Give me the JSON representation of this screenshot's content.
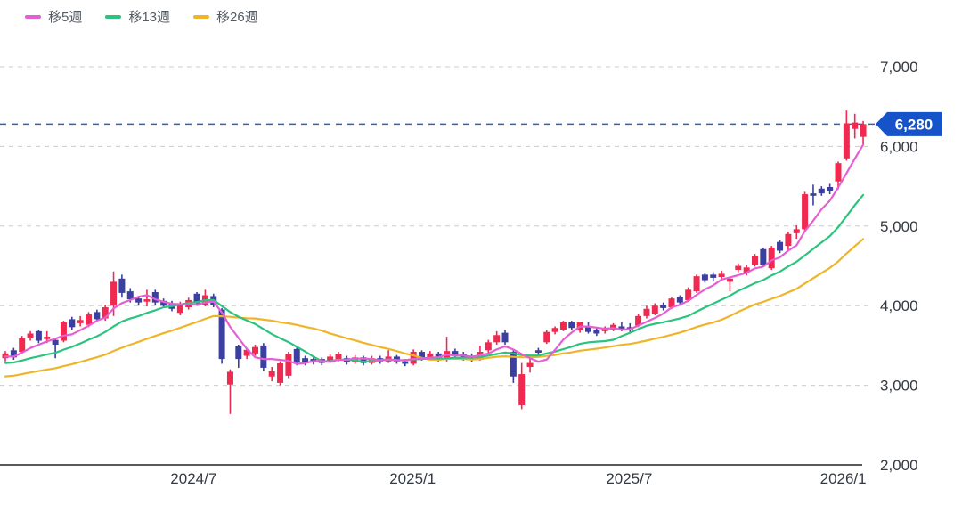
{
  "legend": {
    "items": [
      {
        "label": "移5週",
        "color": "#e55fd2"
      },
      {
        "label": "移13週",
        "color": "#2bc47e"
      },
      {
        "label": "移26週",
        "color": "#f0b429"
      }
    ]
  },
  "price_marker": {
    "label": "6,280",
    "value": 6280,
    "tag_color": "#1753c8",
    "line_color": "#2f5fc9",
    "text_color": "#ffffff"
  },
  "chart_data": {
    "type": "candlestick",
    "title": "",
    "interval": "weekly",
    "ylim": [
      2000,
      7000
    ],
    "grid": "dashed-horizontal",
    "legend_position": "top-left",
    "colors": {
      "up_candle": "#ef2950",
      "down_candle": "#3b3f9f",
      "gridline": "#cccccc",
      "axis_line": "#222222",
      "tick_text": "#343a42",
      "ma5": "#e55fd2",
      "ma13": "#2bc47e",
      "ma26": "#f0b429"
    },
    "y_ticks": [
      {
        "label": "7,000",
        "value": 7000
      },
      {
        "label": "6,000",
        "value": 6000
      },
      {
        "label": "5,000",
        "value": 5000
      },
      {
        "label": "4,000",
        "value": 4000
      },
      {
        "label": "3,000",
        "value": 3000
      },
      {
        "label": "2,000",
        "value": 2000
      }
    ],
    "x_ticks": [
      {
        "label": "2024/7",
        "week": 22.6
      },
      {
        "label": "2025/1",
        "week": 48.9
      },
      {
        "label": "2025/7",
        "week": 74.9
      },
      {
        "label": "2026/1",
        "week": 100.6
      }
    ],
    "moving_averages": {
      "windows": [
        5,
        13,
        26
      ],
      "left_edge_values": {
        "ma5": 3350,
        "ma13": 3270,
        "ma26": 3100
      }
    },
    "ohlc_note": "weekly candles [open,high,low,close], read from chart",
    "ohlc": [
      [
        3340,
        3430,
        3300,
        3400
      ],
      [
        3440,
        3470,
        3320,
        3350
      ],
      [
        3420,
        3620,
        3390,
        3590
      ],
      [
        3590,
        3680,
        3560,
        3650
      ],
      [
        3680,
        3700,
        3530,
        3560
      ],
      [
        3580,
        3680,
        3530,
        3610
      ],
      [
        3570,
        3600,
        3340,
        3510
      ],
      [
        3560,
        3810,
        3540,
        3790
      ],
      [
        3830,
        3860,
        3700,
        3730
      ],
      [
        3780,
        3870,
        3740,
        3820
      ],
      [
        3760,
        3920,
        3730,
        3890
      ],
      [
        3920,
        3950,
        3810,
        3830
      ],
      [
        3840,
        4010,
        3810,
        3980
      ],
      [
        4000,
        4430,
        3870,
        4300
      ],
      [
        4340,
        4390,
        4100,
        4160
      ],
      [
        4180,
        4220,
        4040,
        4080
      ],
      [
        4090,
        4120,
        4000,
        4040
      ],
      [
        4050,
        4200,
        3990,
        4080
      ],
      [
        4170,
        4200,
        4010,
        4040
      ],
      [
        4060,
        4090,
        3970,
        4000
      ],
      [
        4030,
        4060,
        3930,
        3960
      ],
      [
        3910,
        4050,
        3880,
        4010
      ],
      [
        3980,
        4100,
        3950,
        4070
      ],
      [
        4150,
        4170,
        4000,
        4030
      ],
      [
        4010,
        4200,
        3990,
        4130
      ],
      [
        4120,
        4150,
        3980,
        4010
      ],
      [
        3950,
        3970,
        3270,
        3330
      ],
      [
        3010,
        3200,
        2640,
        3170
      ],
      [
        3490,
        3510,
        3220,
        3330
      ],
      [
        3370,
        3470,
        3330,
        3445
      ],
      [
        3400,
        3510,
        3370,
        3480
      ],
      [
        3500,
        3530,
        3180,
        3220
      ],
      [
        3110,
        3230,
        3050,
        3175
      ],
      [
        3030,
        3300,
        3000,
        3275
      ],
      [
        3120,
        3420,
        3090,
        3390
      ],
      [
        3455,
        3480,
        3250,
        3285
      ],
      [
        3340,
        3370,
        3250,
        3275
      ],
      [
        3330,
        3360,
        3260,
        3290
      ],
      [
        3330,
        3350,
        3250,
        3280
      ],
      [
        3300,
        3390,
        3280,
        3360
      ],
      [
        3330,
        3420,
        3300,
        3390
      ],
      [
        3340,
        3370,
        3260,
        3290
      ],
      [
        3290,
        3380,
        3270,
        3350
      ],
      [
        3350,
        3370,
        3250,
        3280
      ],
      [
        3280,
        3370,
        3260,
        3340
      ],
      [
        3340,
        3370,
        3270,
        3300
      ],
      [
        3300,
        3440,
        3280,
        3360
      ],
      [
        3360,
        3380,
        3270,
        3300
      ],
      [
        3300,
        3330,
        3240,
        3270
      ],
      [
        3270,
        3450,
        3250,
        3420
      ],
      [
        3420,
        3440,
        3310,
        3340
      ],
      [
        3340,
        3430,
        3320,
        3400
      ],
      [
        3400,
        3420,
        3300,
        3330
      ],
      [
        3330,
        3610,
        3300,
        3430
      ],
      [
        3430,
        3460,
        3330,
        3370
      ],
      [
        3390,
        3420,
        3310,
        3340
      ],
      [
        3370,
        3400,
        3290,
        3320
      ],
      [
        3320,
        3500,
        3310,
        3420
      ],
      [
        3440,
        3570,
        3410,
        3540
      ],
      [
        3540,
        3680,
        3510,
        3630
      ],
      [
        3660,
        3690,
        3510,
        3540
      ],
      [
        3420,
        3440,
        3030,
        3110
      ],
      [
        2750,
        3280,
        2700,
        3140
      ],
      [
        3230,
        3370,
        3160,
        3280
      ],
      [
        3440,
        3470,
        3370,
        3410
      ],
      [
        3540,
        3690,
        3520,
        3670
      ],
      [
        3670,
        3740,
        3640,
        3720
      ],
      [
        3700,
        3810,
        3680,
        3790
      ],
      [
        3790,
        3810,
        3700,
        3720
      ],
      [
        3690,
        3800,
        3660,
        3790
      ],
      [
        3730,
        3790,
        3650,
        3670
      ],
      [
        3700,
        3720,
        3620,
        3650
      ],
      [
        3680,
        3740,
        3650,
        3720
      ],
      [
        3700,
        3780,
        3680,
        3760
      ],
      [
        3740,
        3790,
        3680,
        3700
      ],
      [
        3730,
        3780,
        3670,
        3700
      ],
      [
        3750,
        3900,
        3730,
        3870
      ],
      [
        3870,
        4000,
        3840,
        3960
      ],
      [
        3900,
        4030,
        3880,
        4000
      ],
      [
        4010,
        4040,
        3940,
        3970
      ],
      [
        3980,
        4110,
        3960,
        4090
      ],
      [
        4110,
        4130,
        4010,
        4040
      ],
      [
        4070,
        4230,
        4050,
        4200
      ],
      [
        4180,
        4390,
        4160,
        4370
      ],
      [
        4390,
        4410,
        4290,
        4320
      ],
      [
        4390,
        4420,
        4310,
        4350
      ],
      [
        4360,
        4440,
        4330,
        4400
      ],
      [
        4300,
        4360,
        4180,
        4340
      ],
      [
        4450,
        4530,
        4420,
        4500
      ],
      [
        4410,
        4510,
        4380,
        4480
      ],
      [
        4510,
        4650,
        4490,
        4620
      ],
      [
        4710,
        4730,
        4490,
        4510
      ],
      [
        4470,
        4750,
        4450,
        4730
      ],
      [
        4800,
        4820,
        4660,
        4690
      ],
      [
        4750,
        4930,
        4700,
        4900
      ],
      [
        4910,
        5010,
        4840,
        4960
      ],
      [
        4960,
        5430,
        4940,
        5400
      ],
      [
        5410,
        5520,
        5260,
        5380
      ],
      [
        5470,
        5500,
        5380,
        5410
      ],
      [
        5490,
        5530,
        5400,
        5440
      ],
      [
        5560,
        5810,
        5460,
        5790
      ],
      [
        5850,
        6450,
        5820,
        6290
      ],
      [
        6220,
        6410,
        6100,
        6300
      ],
      [
        6120,
        6320,
        6010,
        6280
      ]
    ]
  }
}
